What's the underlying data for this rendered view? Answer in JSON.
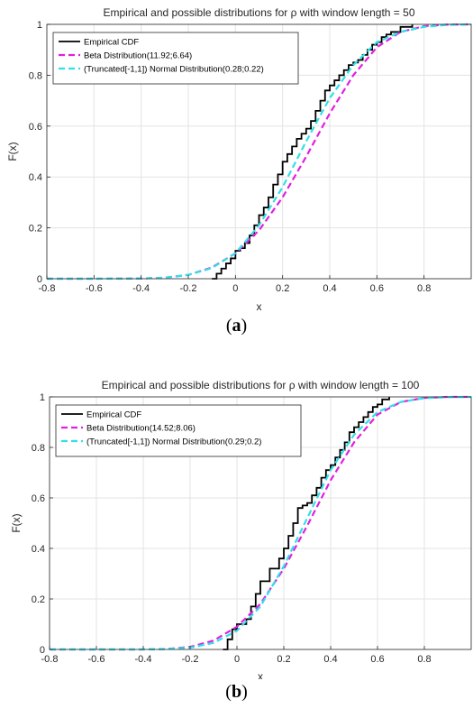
{
  "chart_data": [
    {
      "type": "line",
      "title": "Empirical and possible distributions for ρ with window length = 50",
      "xlabel": "x",
      "ylabel": "F(x)",
      "xlim": [
        -0.8,
        1.0
      ],
      "ylim": [
        0,
        1
      ],
      "xticks": [
        -0.8,
        -0.6,
        -0.4,
        -0.2,
        0,
        0.2,
        0.4,
        0.6,
        0.8
      ],
      "xtick_labels": [
        "-0.8",
        "-0.6",
        "-0.4",
        "-0.2",
        "0",
        "0.2",
        "0.4",
        "0.6",
        "0.8"
      ],
      "yticks": [
        0,
        0.2,
        0.4,
        0.6,
        0.8,
        1
      ],
      "ytick_labels": [
        "0",
        "0.2",
        "0.4",
        "0.6",
        "0.8",
        "1"
      ],
      "grid": true,
      "legend_position": "top-left",
      "caption_letter": "a",
      "series": [
        {
          "name": "Empirical CDF",
          "style": "step",
          "color": "#000000",
          "dash": "solid",
          "x": [
            -0.1,
            -0.08,
            -0.06,
            -0.04,
            -0.02,
            0.0,
            0.02,
            0.04,
            0.06,
            0.08,
            0.1,
            0.12,
            0.14,
            0.16,
            0.18,
            0.2,
            0.22,
            0.24,
            0.26,
            0.28,
            0.3,
            0.32,
            0.34,
            0.36,
            0.38,
            0.4,
            0.42,
            0.44,
            0.46,
            0.48,
            0.5,
            0.52,
            0.54,
            0.56,
            0.58,
            0.6,
            0.62,
            0.64,
            0.66,
            0.7,
            0.75
          ],
          "y": [
            0.0,
            0.02,
            0.04,
            0.06,
            0.08,
            0.11,
            0.12,
            0.14,
            0.17,
            0.21,
            0.25,
            0.28,
            0.32,
            0.37,
            0.41,
            0.46,
            0.49,
            0.52,
            0.55,
            0.57,
            0.59,
            0.62,
            0.66,
            0.7,
            0.74,
            0.76,
            0.78,
            0.8,
            0.82,
            0.84,
            0.85,
            0.86,
            0.88,
            0.9,
            0.92,
            0.93,
            0.95,
            0.96,
            0.97,
            0.99,
            1.0
          ]
        },
        {
          "name": "Beta Distribution(11.92;6.64)",
          "style": "line",
          "color": "#e020e0",
          "dash": "dashed",
          "x": [
            -0.8,
            -0.6,
            -0.4,
            -0.3,
            -0.2,
            -0.1,
            0.0,
            0.1,
            0.2,
            0.3,
            0.4,
            0.5,
            0.6,
            0.7,
            0.8,
            0.9,
            1.0
          ],
          "y": [
            0.0,
            0.0,
            0.001,
            0.004,
            0.015,
            0.044,
            0.1,
            0.19,
            0.32,
            0.48,
            0.65,
            0.8,
            0.91,
            0.97,
            0.993,
            0.999,
            1.0
          ]
        },
        {
          "name": "(Truncated[-1,1]) Normal Distribution(0.28;0.22)",
          "style": "line",
          "color": "#2fe0e8",
          "dash": "dashed",
          "x": [
            -0.8,
            -0.6,
            -0.4,
            -0.3,
            -0.2,
            -0.1,
            0.0,
            0.1,
            0.2,
            0.3,
            0.4,
            0.5,
            0.6,
            0.7,
            0.8,
            0.9,
            1.0
          ],
          "y": [
            0.0,
            0.0,
            0.001,
            0.004,
            0.015,
            0.042,
            0.1,
            0.21,
            0.36,
            0.54,
            0.71,
            0.84,
            0.93,
            0.97,
            0.99,
            0.998,
            1.0
          ]
        }
      ]
    },
    {
      "type": "line",
      "title": "Empirical and possible distributions for ρ with window length = 100",
      "xlabel": "x",
      "ylabel": "F(x)",
      "xlim": [
        -0.8,
        1.0
      ],
      "ylim": [
        0,
        1
      ],
      "xticks": [
        -0.8,
        -0.6,
        -0.4,
        -0.2,
        0,
        0.2,
        0.4,
        0.6,
        0.8
      ],
      "xtick_labels": [
        "-0.8",
        "-0.6",
        "-0.4",
        "-0.2",
        "0",
        "0.2",
        "0.4",
        "0.6",
        "0.8"
      ],
      "yticks": [
        0,
        0.2,
        0.4,
        0.6,
        0.8,
        1
      ],
      "ytick_labels": [
        "0",
        "0.2",
        "0.4",
        "0.6",
        "0.8",
        "1"
      ],
      "grid": true,
      "legend_position": "top-left",
      "caption_letter": "b",
      "series": [
        {
          "name": "Empirical CDF",
          "style": "step",
          "color": "#000000",
          "dash": "solid",
          "x": [
            -0.06,
            -0.04,
            -0.02,
            0.0,
            0.04,
            0.06,
            0.08,
            0.1,
            0.14,
            0.18,
            0.2,
            0.22,
            0.24,
            0.26,
            0.28,
            0.3,
            0.32,
            0.34,
            0.36,
            0.38,
            0.4,
            0.42,
            0.44,
            0.46,
            0.48,
            0.5,
            0.52,
            0.54,
            0.56,
            0.58,
            0.6,
            0.62,
            0.65
          ],
          "y": [
            0.0,
            0.04,
            0.08,
            0.1,
            0.12,
            0.17,
            0.22,
            0.27,
            0.32,
            0.36,
            0.4,
            0.45,
            0.5,
            0.56,
            0.57,
            0.58,
            0.61,
            0.64,
            0.68,
            0.71,
            0.73,
            0.76,
            0.79,
            0.82,
            0.86,
            0.88,
            0.9,
            0.92,
            0.94,
            0.96,
            0.97,
            0.99,
            1.0
          ]
        },
        {
          "name": "Beta Distribution(14.52;8.06)",
          "style": "line",
          "color": "#e020e0",
          "dash": "dashed",
          "x": [
            -0.8,
            -0.6,
            -0.4,
            -0.3,
            -0.2,
            -0.1,
            0.0,
            0.1,
            0.2,
            0.3,
            0.4,
            0.5,
            0.6,
            0.7,
            0.8,
            0.9,
            1.0
          ],
          "y": [
            0.0,
            0.0,
            0.0,
            0.002,
            0.01,
            0.035,
            0.09,
            0.18,
            0.32,
            0.49,
            0.67,
            0.82,
            0.93,
            0.98,
            0.996,
            1.0,
            1.0
          ]
        },
        {
          "name": "(Truncated[-1,1]) Normal Distribution(0.29;0.2)",
          "style": "line",
          "color": "#2fe0e8",
          "dash": "dashed",
          "x": [
            -0.8,
            -0.6,
            -0.4,
            -0.3,
            -0.2,
            -0.1,
            0.0,
            0.1,
            0.2,
            0.3,
            0.4,
            0.5,
            0.6,
            0.7,
            0.8,
            0.9,
            1.0
          ],
          "y": [
            0.0,
            0.0,
            0.0,
            0.002,
            0.007,
            0.026,
            0.074,
            0.17,
            0.33,
            0.52,
            0.71,
            0.85,
            0.94,
            0.98,
            0.995,
            0.999,
            1.0
          ]
        }
      ]
    }
  ]
}
